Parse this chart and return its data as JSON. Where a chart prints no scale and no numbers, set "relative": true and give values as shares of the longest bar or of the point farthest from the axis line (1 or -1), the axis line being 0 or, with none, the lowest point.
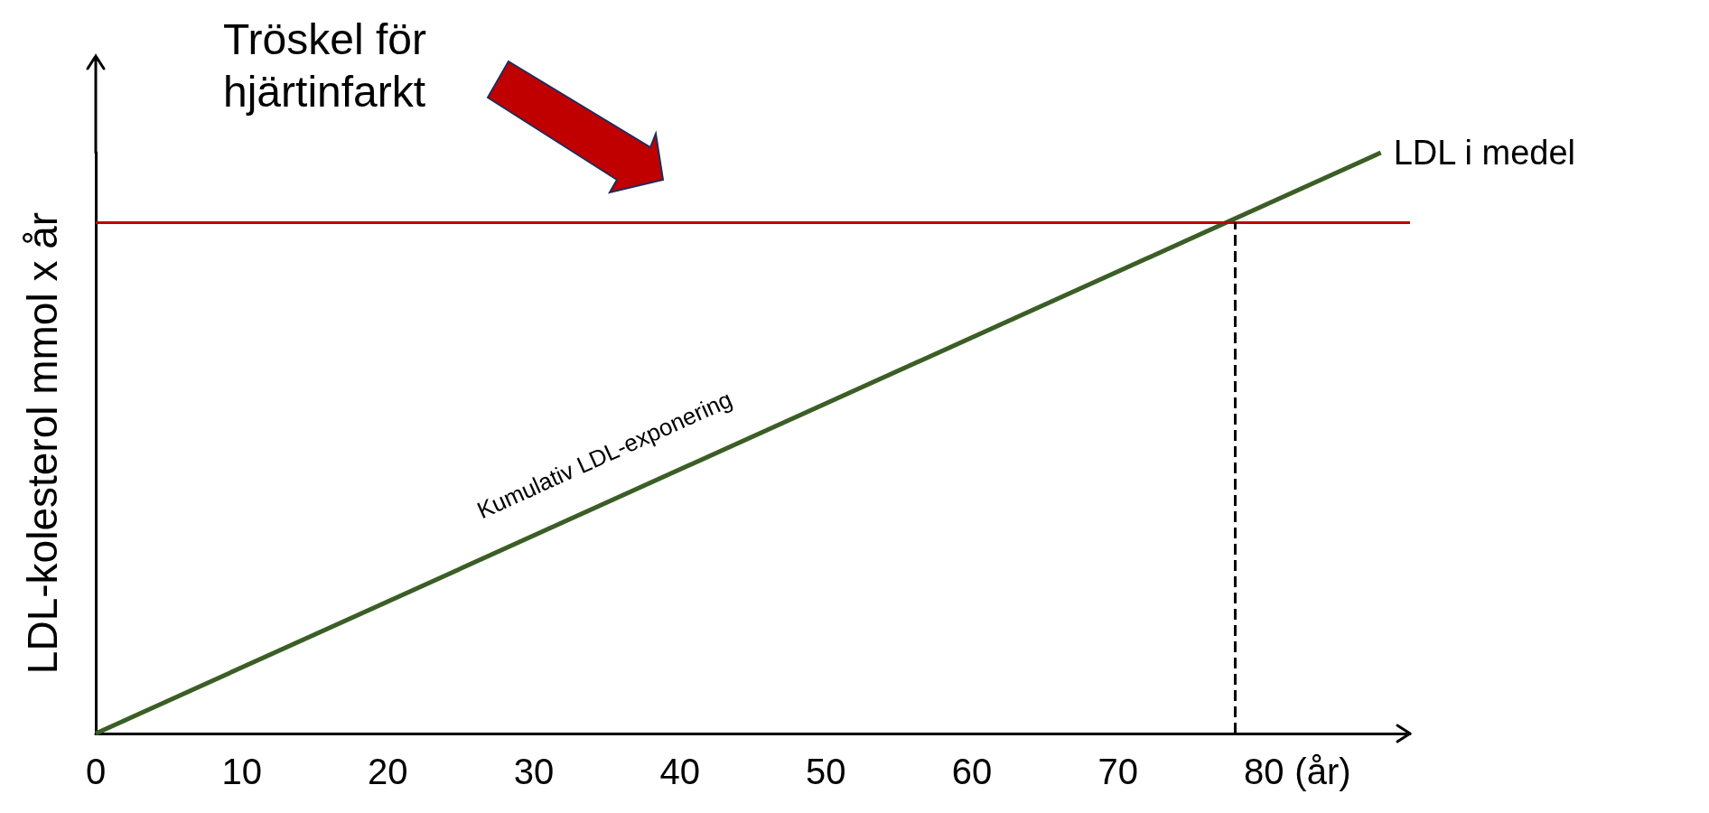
{
  "chart_data": {
    "type": "line",
    "relative": true,
    "ylabel": "LDL-kolesterol mmol x år",
    "xlabel": "(år)",
    "x": [
      0,
      88
    ],
    "series": [
      {
        "name": "LDL i medel",
        "color": "#3b5e26",
        "values": [
          0,
          1
        ]
      }
    ],
    "xlim": [
      0,
      90
    ],
    "xticks": [
      0,
      10,
      20,
      30,
      40,
      50,
      60,
      70,
      80
    ],
    "ref_lines": [
      {
        "axis": "y",
        "value": 0.88,
        "label": "Tröskel för hjärtinfarkt",
        "color": "#c00000"
      },
      {
        "axis": "x",
        "value": 78,
        "color": "#000000",
        "line_style": "dashed"
      }
    ],
    "annotations": [
      "Kumulativ LDL-exponering"
    ],
    "grid": false,
    "legend": false,
    "marker": "none"
  }
}
